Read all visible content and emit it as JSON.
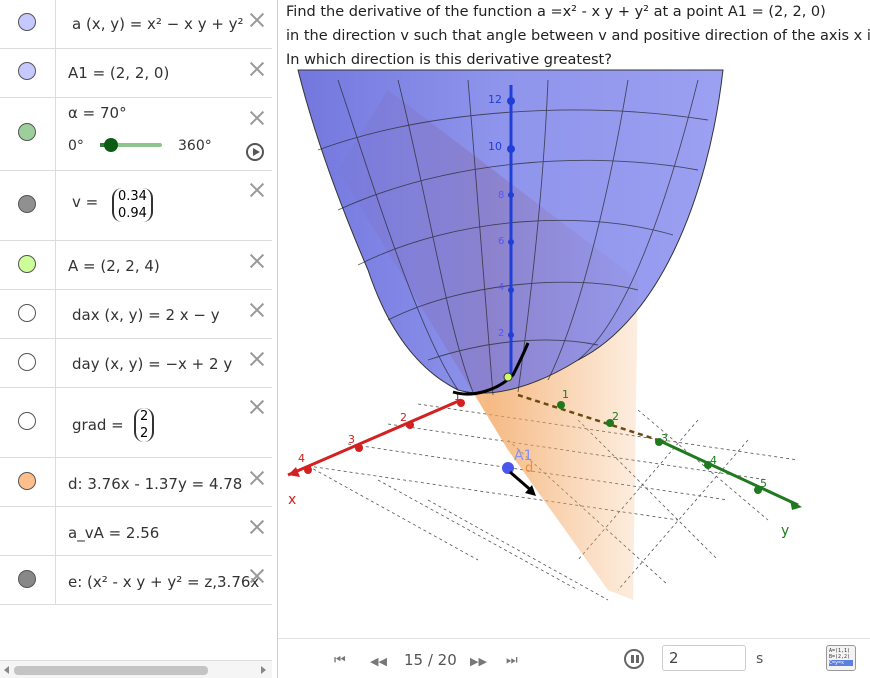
{
  "algebra": {
    "rows": [
      {
        "marble_color": "#c5c9ff",
        "expr": "a (x, y)  =  x² − x y + y²"
      },
      {
        "marble_color": "#c5c9ff",
        "expr": "A1  =  (2, 2, 0)"
      },
      {
        "marble_color": "#9ccf9c",
        "expr": "α = 70°",
        "slider_min": "0°",
        "slider_max": "360°",
        "slider_fraction": 0.19
      },
      {
        "marble_color": "#909090",
        "expr_prefix": "v  =",
        "vec": [
          "0.34",
          "0.94"
        ]
      },
      {
        "marble_color": "#ccff99",
        "expr": "A  =  (2, 2, 4)"
      },
      {
        "marble_color": "#ffffff",
        "expr": "dax (x, y)  =  2 x − y"
      },
      {
        "marble_color": "#ffffff",
        "expr": "day (x, y)  =  −x + 2 y"
      },
      {
        "marble_color": "#ffffff",
        "expr_prefix": "grad  =",
        "vec": [
          "2",
          "2"
        ]
      },
      {
        "marble_color": "#ffbf8c",
        "expr": "d: 3.76x - 1.37y  =  4.78"
      },
      {
        "marble_color": null,
        "expr": "a_vA  =  2.56"
      },
      {
        "marble_color": "#888888",
        "expr": "e: (x² - x y + y²  =  z,3.76x"
      }
    ]
  },
  "task_lines": [
    "Find the derivative of the function a =x² - x y + y²  at a point A1 = (2, 2, 0)",
    "in the direction v such that angle between v and positive direction of the axis x is a",
    "In which direction is this derivative greatest?"
  ],
  "graph": {
    "axis_x_label": "x",
    "axis_y_label": "y",
    "z_ticks": [
      "2",
      "4",
      "6",
      "8",
      "10",
      "12"
    ],
    "x_ticks": [
      "1",
      "2",
      "3",
      "4"
    ],
    "y_ticks": [
      "1",
      "2",
      "3",
      "4",
      "5"
    ],
    "point_label_A1": "A1",
    "point_label_d": "d",
    "colors": {
      "surface": "#6a6fe0",
      "plane": "#f2a25a",
      "x_axis": "#d42020",
      "y_axis": "#1f7a1f",
      "z_axis": "#1f3fd6"
    }
  },
  "animbar": {
    "first_icon": "⏮",
    "prev_icon": "◀◀",
    "frame": "15 / 20",
    "next_icon": "▶▶",
    "last_icon": "⏭",
    "speed": "2",
    "speed_unit": "s",
    "table_icon_lines": [
      "A=(1,1)",
      "B=(2,2)",
      "C=y=x"
    ]
  }
}
